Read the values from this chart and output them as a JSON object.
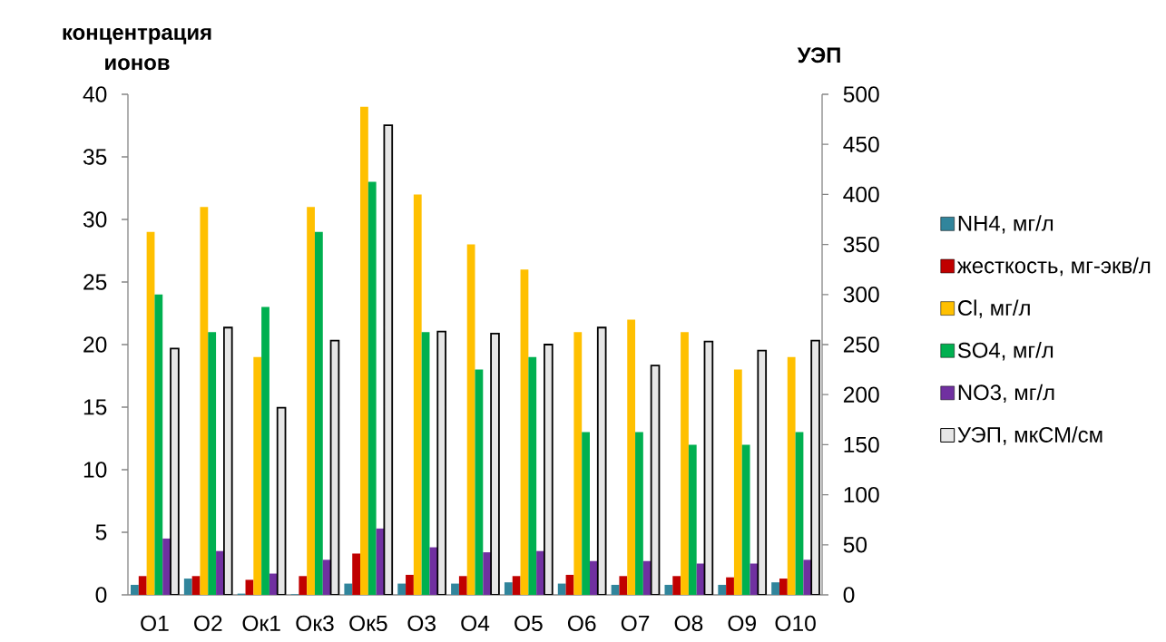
{
  "chart_data": {
    "type": "bar",
    "ylabel": "концентрация ионов",
    "y2label": "УЭП",
    "categories": [
      "О1",
      "О2",
      "Ок1",
      "Ок3",
      "Ок5",
      "О3",
      "О4",
      "О5",
      "О6",
      "О7",
      "О8",
      "О9",
      "О10"
    ],
    "series": [
      {
        "name": "NH4, мг/л",
        "color": "#31859c",
        "values": [
          0.8,
          1.3,
          0.1,
          0.05,
          0.9,
          0.9,
          0.9,
          1.0,
          0.9,
          0.8,
          0.8,
          0.8,
          1.0
        ]
      },
      {
        "name": "жесткость, мг-экв/л",
        "color": "#c00000",
        "values": [
          1.5,
          1.5,
          1.2,
          1.5,
          3.3,
          1.6,
          1.5,
          1.5,
          1.6,
          1.5,
          1.5,
          1.4,
          1.3
        ]
      },
      {
        "name": "Cl, мг/л",
        "color": "#ffc000",
        "values": [
          29,
          31,
          19,
          31,
          39,
          32,
          28,
          26,
          21,
          22,
          21,
          18,
          19
        ]
      },
      {
        "name": "SO4, мг/л",
        "color": "#00b050",
        "values": [
          24,
          21,
          23,
          29,
          33,
          21,
          18,
          19,
          13,
          13,
          12,
          12,
          13
        ]
      },
      {
        "name": "NO3, мг/л",
        "color": "#7030a0",
        "values": [
          4.5,
          3.5,
          1.7,
          2.8,
          5.3,
          3.8,
          3.4,
          3.5,
          2.7,
          2.7,
          2.5,
          2.5,
          2.8
        ]
      },
      {
        "name": "УЭП, мкСМ/см",
        "color": "#e6e6e6",
        "axis": "y2",
        "values": [
          246,
          267,
          187,
          254,
          469,
          263,
          261,
          250,
          267,
          229,
          253,
          244,
          254
        ]
      }
    ],
    "ylim": [
      0,
      40
    ],
    "yticks": [
      0,
      5,
      10,
      15,
      20,
      25,
      30,
      35,
      40
    ],
    "y2lim": [
      0,
      500
    ],
    "y2ticks": [
      0,
      50,
      100,
      150,
      200,
      250,
      300,
      350,
      400,
      450,
      500
    ],
    "legend": "right"
  }
}
